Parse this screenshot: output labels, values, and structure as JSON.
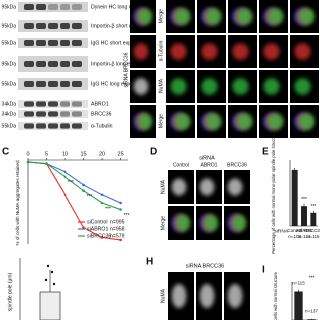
{
  "blots": {
    "labels": [
      "Dynein HC long exposure",
      "Importin-β short exposure",
      "IgG HC short exposure",
      "Importin-β long exposure",
      "IgG HC long exposure",
      "ABRO1",
      "BRCC36",
      "α-Tubulin"
    ],
    "markers": [
      "95kDa",
      "95kDa",
      "55kDa",
      "95kDa",
      "55kDa",
      "34kDa",
      "34kDa",
      "55kDa"
    ]
  },
  "micrographs": {
    "row_labels": [
      "Merge",
      "α-Tubulin",
      "NuMA",
      "Merge"
    ],
    "group_label": "siRNA BRCC36"
  },
  "panels": {
    "C": "C",
    "D": "D",
    "E": "E",
    "H": "H",
    "I": "I"
  },
  "panel_d": {
    "title": "siRNA",
    "columns": [
      "Control",
      "ABRO1",
      "BRCC36"
    ],
    "rows": [
      "NuMA",
      "Merge"
    ]
  },
  "panel_h": {
    "title": "siRNA BRCC36",
    "rows": [
      "NuMA"
    ]
  },
  "box_plot": {
    "y_label": "spindle pole (μm)"
  },
  "chart_data": [
    {
      "type": "line",
      "y_label": "% of cells with NuMA aggregates retained",
      "x": [
        0,
        5,
        10,
        15,
        20,
        25
      ],
      "xlim": [
        0,
        27
      ],
      "xticks": [
        0,
        5,
        10,
        15,
        20,
        25
      ],
      "ylim": [
        0,
        100
      ],
      "series": [
        {
          "name": "siControl",
          "n_label": "n=995",
          "color": "#e8322d",
          "values": [
            100,
            98,
            60,
            20,
            8,
            5
          ]
        },
        {
          "name": "siABRO1",
          "n_label": "n=958",
          "color": "#3b6fd8",
          "values": [
            100,
            98,
            88,
            72,
            60,
            50
          ]
        },
        {
          "name": "siBRCC36",
          "n_label": "n=579",
          "color": "#2ea34a",
          "values": [
            100,
            98,
            82,
            65,
            50,
            42
          ]
        }
      ],
      "annotations": [
        "***",
        "***",
        "***",
        "***"
      ]
    },
    {
      "type": "bar",
      "y_label": "Percentage of cells with normal mono-polar spindle pole structure",
      "prefix": "siRNA",
      "categories": [
        "Control",
        "ABRO1",
        "BRCC36"
      ],
      "values": [
        85,
        30,
        20
      ],
      "errors": [
        3,
        4,
        3
      ],
      "n_labels": [
        "n=104",
        "n=114",
        "n=115"
      ],
      "ylim": [
        0,
        100
      ],
      "color": "#222222",
      "annotations": [
        null,
        "***",
        "***"
      ]
    },
    {
      "type": "bar",
      "y_label": "% of cells with normal structure",
      "categories": [
        null,
        null
      ],
      "values": [
        75,
        2
      ],
      "errors": [
        5,
        1
      ],
      "n_labels": [
        "n=115",
        "n=137"
      ],
      "ylim": [
        0,
        100
      ],
      "color": "#222222",
      "annotations": [
        null,
        "***"
      ]
    }
  ]
}
